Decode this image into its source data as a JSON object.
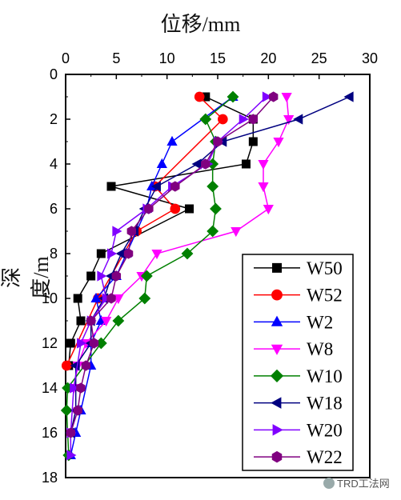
{
  "chart_data": {
    "type": "line",
    "xlabel": "位移/mm",
    "ylabel": "深度/m",
    "x_axis_position": "top",
    "y_inverted": true,
    "xlim": [
      0,
      30
    ],
    "ylim": [
      0,
      18
    ],
    "xticks": [
      "0",
      "5",
      "10",
      "15",
      "20",
      "25",
      "30"
    ],
    "yticks": [
      "0",
      "2",
      "4",
      "6",
      "8",
      "10",
      "12",
      "14",
      "16",
      "18"
    ],
    "legend_position": "bottom-right",
    "grid": false,
    "series": [
      {
        "name": "W50",
        "color": "#000000",
        "marker": "square",
        "x": [
          13.8,
          18.5,
          18.5,
          17.8,
          4.5,
          12.2,
          3.5,
          2.5,
          1.2,
          1.5,
          0.5,
          0.3
        ],
        "y": [
          1,
          2,
          3,
          4,
          5,
          6,
          8,
          9,
          10,
          11,
          12,
          13
        ]
      },
      {
        "name": "W52",
        "color": "#ff0000",
        "marker": "circle",
        "x": [
          13.2,
          15.5,
          8.8,
          10.8,
          7.0,
          3.2,
          0.1
        ],
        "y": [
          1,
          2,
          5,
          6,
          7,
          10,
          13
        ]
      },
      {
        "name": "W2",
        "color": "#0000ff",
        "marker": "triangle-up",
        "x": [
          16.5,
          10.5,
          9.5,
          8.5,
          8.0,
          6.0,
          5.0,
          3.0,
          3.5,
          2.5,
          2.5,
          1.5,
          1.0,
          0.5
        ],
        "y": [
          1,
          3,
          4,
          5,
          6,
          8,
          9,
          10,
          11,
          12,
          13,
          15,
          16,
          17
        ]
      },
      {
        "name": "W8",
        "color": "#ff00ff",
        "marker": "triangle-down",
        "x": [
          21.8,
          22.0,
          21.0,
          19.5,
          19.5,
          20.0,
          16.8,
          9.0,
          7.5,
          5.2,
          4.0,
          2.0,
          1.2,
          0.8
        ],
        "y": [
          1,
          2,
          3,
          4,
          5,
          6,
          7,
          8,
          9,
          10,
          11,
          12,
          13,
          14
        ]
      },
      {
        "name": "W10",
        "color": "#008000",
        "marker": "diamond",
        "x": [
          16.5,
          13.8,
          14.8,
          14.5,
          14.5,
          14.8,
          14.5,
          12.0,
          8.0,
          7.8,
          5.2,
          3.5,
          0.2,
          0.1,
          0.3
        ],
        "y": [
          1,
          2,
          3,
          4,
          5,
          6,
          7,
          8,
          9,
          10,
          11,
          12,
          14,
          15,
          17
        ]
      },
      {
        "name": "W18",
        "color": "#000080",
        "marker": "triangle-left",
        "x": [
          28.0,
          23.0,
          15.5,
          13.0,
          9.0,
          7.8,
          6.8,
          5.5,
          4.5,
          3.8,
          2.5,
          2.5,
          1.0,
          1.0,
          0.5
        ],
        "y": [
          1,
          2,
          3,
          4,
          5,
          6,
          7,
          8,
          9,
          10,
          11,
          12,
          13,
          15,
          16
        ]
      },
      {
        "name": "W20",
        "color": "#8000ff",
        "marker": "triangle-right",
        "x": [
          19.8,
          17.5,
          15.0,
          14.0,
          10.5,
          8.0,
          5.0,
          4.5,
          3.5,
          4.0,
          2.5,
          1.5,
          0.8,
          0.5,
          0.5
        ],
        "y": [
          1,
          2,
          3,
          4,
          5,
          6,
          7,
          8,
          9,
          10,
          11,
          12,
          14,
          16,
          17
        ]
      },
      {
        "name": "W22",
        "color": "#800080",
        "marker": "hexagon",
        "x": [
          20.5,
          18.5,
          15.0,
          13.8,
          10.8,
          8.2,
          6.5,
          6.2,
          5.0,
          4.5,
          2.5,
          2.8,
          2.0,
          1.5,
          1.2,
          0.5
        ],
        "y": [
          1,
          2,
          3,
          4,
          5,
          6,
          7,
          8,
          9,
          10,
          11,
          12,
          13,
          14,
          15,
          16
        ]
      }
    ]
  },
  "watermark": "TRD工法网"
}
